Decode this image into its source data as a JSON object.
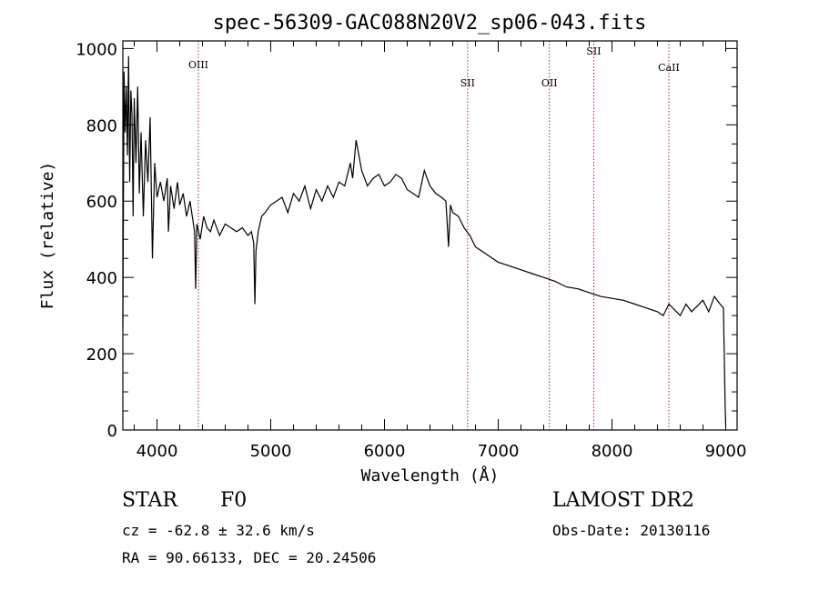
{
  "chart_data": {
    "type": "line",
    "title": "spec-56309-GAC088N20V2_sp06-043.fits",
    "xlabel": "Wavelength (Å)",
    "ylabel": "Flux (relative)",
    "xlim": [
      3700,
      9100
    ],
    "ylim": [
      0,
      1020
    ],
    "xticks": [
      4000,
      5000,
      6000,
      7000,
      8000,
      9000
    ],
    "yticks": [
      0,
      200,
      400,
      600,
      800,
      1000
    ],
    "grid": false,
    "series": [
      {
        "color": "#000000",
        "x": [
          3700,
          3710,
          3720,
          3730,
          3740,
          3750,
          3760,
          3770,
          3780,
          3790,
          3800,
          3815,
          3830,
          3845,
          3860,
          3880,
          3900,
          3920,
          3940,
          3960,
          3980,
          4000,
          4030,
          4060,
          4090,
          4101,
          4120,
          4150,
          4180,
          4200,
          4230,
          4260,
          4290,
          4310,
          4330,
          4340,
          4350,
          4380,
          4410,
          4440,
          4470,
          4500,
          4550,
          4600,
          4650,
          4700,
          4750,
          4800,
          4830,
          4850,
          4861,
          4870,
          4890,
          4920,
          4950,
          5000,
          5050,
          5100,
          5150,
          5200,
          5250,
          5300,
          5350,
          5400,
          5450,
          5500,
          5550,
          5600,
          5650,
          5700,
          5720,
          5750,
          5800,
          5850,
          5900,
          5950,
          6000,
          6050,
          6100,
          6150,
          6200,
          6250,
          6300,
          6350,
          6400,
          6450,
          6500,
          6540,
          6563,
          6580,
          6600,
          6650,
          6700,
          6750,
          6800,
          6850,
          6900,
          6950,
          7000,
          7100,
          7200,
          7300,
          7400,
          7500,
          7600,
          7700,
          7800,
          7900,
          8000,
          8100,
          8200,
          8300,
          8400,
          8450,
          8500,
          8550,
          8600,
          8650,
          8700,
          8750,
          8800,
          8850,
          8900,
          8950,
          8980,
          8995,
          9000
        ],
        "y": [
          270,
          940,
          780,
          900,
          720,
          980,
          650,
          890,
          830,
          560,
          870,
          700,
          900,
          620,
          780,
          560,
          760,
          650,
          820,
          450,
          700,
          610,
          650,
          600,
          660,
          520,
          640,
          580,
          650,
          590,
          620,
          560,
          600,
          560,
          520,
          370,
          540,
          500,
          560,
          530,
          520,
          550,
          510,
          540,
          530,
          520,
          530,
          510,
          520,
          490,
          330,
          470,
          520,
          560,
          570,
          590,
          600,
          610,
          570,
          620,
          600,
          640,
          580,
          630,
          600,
          640,
          610,
          650,
          640,
          700,
          660,
          760,
          680,
          640,
          660,
          670,
          640,
          650,
          670,
          660,
          630,
          620,
          610,
          680,
          640,
          620,
          610,
          600,
          480,
          590,
          570,
          560,
          530,
          510,
          480,
          470,
          460,
          450,
          440,
          430,
          420,
          410,
          400,
          390,
          375,
          370,
          360,
          350,
          345,
          340,
          330,
          320,
          310,
          300,
          330,
          315,
          300,
          330,
          310,
          325,
          340,
          310,
          350,
          330,
          320,
          60,
          10
        ]
      }
    ],
    "spectral_lines": [
      {
        "label": "OIII",
        "x": 4364
      },
      {
        "label": "SII",
        "x": 6731
      },
      {
        "label": "OII",
        "x": 7450
      },
      {
        "label": "SII",
        "x": 7840
      },
      {
        "label": "CaII",
        "x": 8500
      }
    ]
  },
  "info": {
    "object_class": "STAR",
    "subclass": "F0",
    "survey": "LAMOST DR2",
    "cz_line": "cz = -62.8 ± 32.6 km/s",
    "obs_date_line": "Obs-Date: 20130116",
    "coords_line": "RA =  90.66133, DEC =  20.24506"
  }
}
